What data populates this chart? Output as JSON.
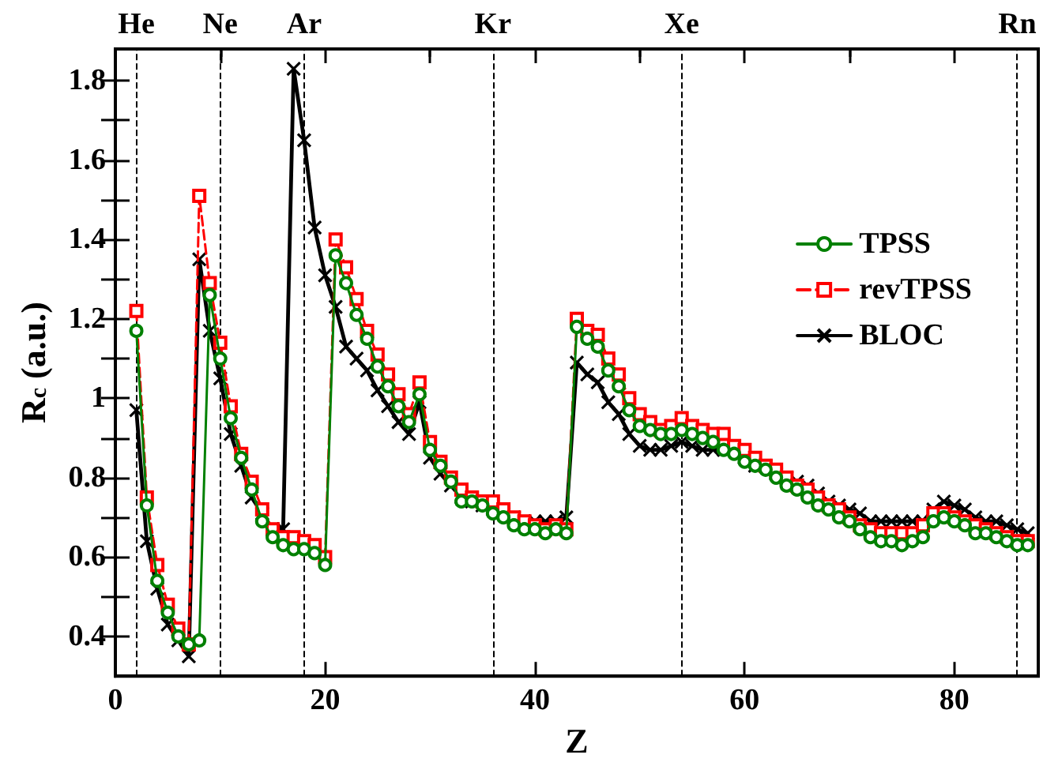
{
  "chart_data": {
    "type": "line",
    "xlabel": "Z",
    "ylabel": "R$_{c}$ (a.u.)",
    "x": [
      2,
      3,
      4,
      5,
      6,
      7,
      8,
      9,
      10,
      11,
      12,
      13,
      14,
      15,
      16,
      17,
      18,
      19,
      20,
      21,
      22,
      23,
      24,
      25,
      26,
      27,
      28,
      29,
      30,
      31,
      32,
      33,
      34,
      35,
      36,
      37,
      38,
      39,
      40,
      41,
      42,
      43,
      44,
      45,
      46,
      47,
      48,
      49,
      50,
      51,
      52,
      53,
      54,
      55,
      56,
      57,
      58,
      59,
      60,
      61,
      62,
      63,
      64,
      65,
      66,
      67,
      68,
      69,
      70,
      71,
      72,
      73,
      74,
      75,
      76,
      77,
      78,
      79,
      80,
      81,
      82,
      83,
      84,
      85,
      86,
      87
    ],
    "series": [
      {
        "name": "TPSS",
        "color": "#008000",
        "marker": "circle",
        "line_style": "solid",
        "values": [
          1.17,
          0.73,
          0.54,
          0.46,
          0.4,
          0.38,
          0.39,
          1.26,
          1.1,
          0.95,
          0.85,
          0.77,
          0.69,
          0.65,
          0.63,
          0.62,
          0.62,
          0.61,
          0.58,
          1.36,
          1.29,
          1.21,
          1.15,
          1.08,
          1.03,
          0.98,
          0.94,
          1.01,
          0.87,
          0.83,
          0.79,
          0.74,
          0.74,
          0.73,
          0.71,
          0.7,
          0.68,
          0.67,
          0.67,
          0.66,
          0.67,
          0.66,
          1.18,
          1.15,
          1.13,
          1.07,
          1.03,
          0.97,
          0.93,
          0.92,
          0.91,
          0.91,
          0.92,
          0.91,
          0.9,
          0.89,
          0.87,
          0.86,
          0.84,
          0.83,
          0.82,
          0.8,
          0.78,
          0.77,
          0.75,
          0.73,
          0.72,
          0.7,
          0.69,
          0.67,
          0.65,
          0.64,
          0.64,
          0.63,
          0.64,
          0.65,
          0.69,
          0.7,
          0.69,
          0.68,
          0.66,
          0.66,
          0.65,
          0.64,
          0.63,
          0.63
        ]
      },
      {
        "name": "revTPSS",
        "color": "#ff0000",
        "marker": "square",
        "line_style": "dashed",
        "values": [
          1.22,
          0.75,
          0.58,
          0.48,
          0.42,
          0.38,
          1.51,
          1.29,
          1.14,
          0.98,
          0.86,
          0.79,
          0.72,
          0.67,
          0.65,
          0.65,
          0.64,
          0.63,
          0.6,
          1.4,
          1.33,
          1.25,
          1.17,
          1.11,
          1.06,
          1.01,
          0.96,
          1.04,
          0.89,
          0.84,
          0.8,
          0.77,
          0.75,
          0.74,
          0.74,
          0.72,
          0.7,
          0.69,
          0.68,
          0.67,
          0.68,
          0.67,
          1.2,
          1.17,
          1.16,
          1.1,
          1.06,
          1.0,
          0.96,
          0.94,
          0.92,
          0.93,
          0.95,
          0.93,
          0.92,
          0.91,
          0.91,
          0.88,
          0.87,
          0.85,
          0.83,
          0.82,
          0.8,
          0.78,
          0.77,
          0.75,
          0.73,
          0.72,
          0.7,
          0.68,
          0.67,
          0.66,
          0.66,
          0.66,
          0.66,
          0.68,
          0.71,
          0.71,
          0.7,
          0.69,
          0.68,
          0.67,
          0.66,
          0.65,
          0.64,
          0.64
        ]
      },
      {
        "name": "BLOC",
        "color": "#000000",
        "marker": "cross",
        "line_style": "solid",
        "values": [
          0.97,
          0.64,
          0.52,
          0.43,
          0.39,
          0.35,
          1.35,
          1.17,
          1.05,
          0.91,
          0.83,
          0.75,
          0.71,
          0.67,
          0.67,
          1.83,
          1.65,
          1.43,
          1.31,
          1.23,
          1.13,
          1.1,
          1.07,
          1.02,
          0.98,
          0.94,
          0.91,
          0.99,
          0.85,
          0.81,
          0.78,
          0.75,
          0.74,
          0.73,
          0.72,
          0.71,
          0.7,
          0.69,
          0.69,
          0.69,
          0.69,
          0.7,
          1.09,
          1.06,
          1.04,
          0.99,
          0.96,
          0.91,
          0.88,
          0.87,
          0.87,
          0.88,
          0.89,
          0.88,
          0.87,
          0.87,
          0.87,
          0.87,
          0.85,
          0.83,
          0.83,
          0.81,
          0.8,
          0.79,
          0.78,
          0.76,
          0.74,
          0.73,
          0.72,
          0.71,
          0.69,
          0.69,
          0.69,
          0.69,
          0.69,
          0.69,
          0.72,
          0.74,
          0.73,
          0.72,
          0.7,
          0.69,
          0.69,
          0.68,
          0.67,
          0.66
        ]
      }
    ],
    "xlim": [
      0,
      88
    ],
    "xticks": [
      0,
      20,
      40,
      60,
      80
    ],
    "ylim": [
      0.3,
      1.88
    ],
    "yticks": [
      0.4,
      0.6,
      0.8,
      1,
      1.2,
      1.4,
      1.6,
      1.8
    ],
    "ref_lines": [
      {
        "axis": "x",
        "value": 2,
        "label": "He",
        "color": "#000000",
        "line_style": "dashed"
      },
      {
        "axis": "x",
        "value": 10,
        "label": "Ne",
        "color": "#000000",
        "line_style": "dashed"
      },
      {
        "axis": "x",
        "value": 18,
        "label": "Ar",
        "color": "#000000",
        "line_style": "dashed"
      },
      {
        "axis": "x",
        "value": 36,
        "label": "Kr",
        "color": "#000000",
        "line_style": "dashed"
      },
      {
        "axis": "x",
        "value": 54,
        "label": "Xe",
        "color": "#000000",
        "line_style": "dashed"
      },
      {
        "axis": "x",
        "value": 86,
        "label": "Rn",
        "color": "#000000",
        "line_style": "dashed"
      }
    ],
    "grid": false,
    "legend": "top right"
  }
}
